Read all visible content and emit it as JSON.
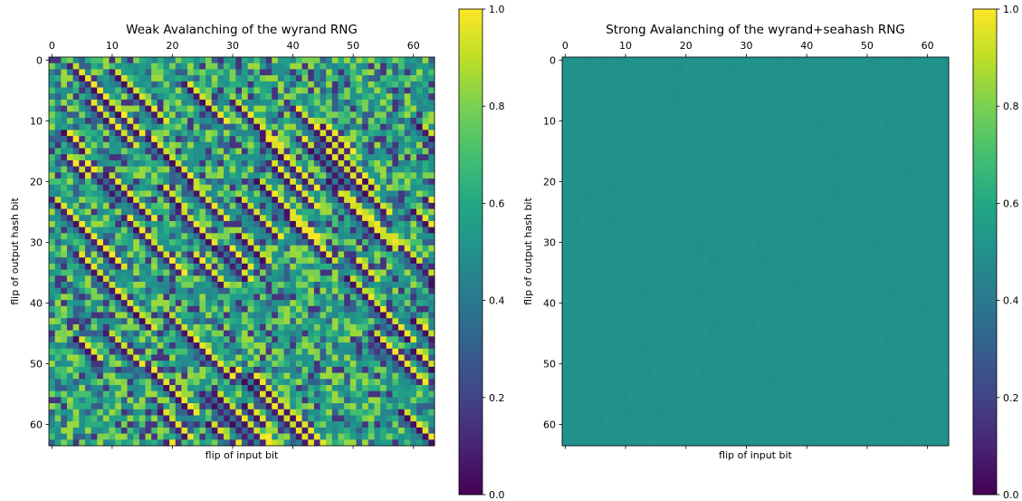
{
  "chart_data": [
    {
      "type": "heatmap",
      "title": "Weak Avalanching of the wyrand RNG",
      "xlabel": "flip of input bit",
      "ylabel": "flip of output hash bit",
      "xlim": [
        -0.5,
        63.5
      ],
      "ylim": [
        63.5,
        -0.5
      ],
      "x_ticks": [
        0,
        10,
        20,
        30,
        40,
        50,
        60
      ],
      "y_ticks": [
        0,
        10,
        20,
        30,
        40,
        50,
        60
      ],
      "grid": false,
      "colormap": "viridis",
      "colorbar": {
        "range": [
          0.0,
          1.0
        ],
        "ticks": [
          "0.0",
          "0.2",
          "0.4",
          "0.6",
          "0.8",
          "1.0"
        ]
      },
      "matrix_size": [
        64,
        64
      ],
      "pattern": "weak",
      "value_distribution": "values spread across 0.0–1.0 with diagonal bands of alternating near-0 and near-1 cells, roughly centred on 0.5"
    },
    {
      "type": "heatmap",
      "title": "Strong Avalanching of the wyrand+seahash RNG",
      "xlabel": "flip of input bit",
      "ylabel": "flip of output hash bit",
      "xlim": [
        -0.5,
        63.5
      ],
      "ylim": [
        63.5,
        -0.5
      ],
      "x_ticks": [
        0,
        10,
        20,
        30,
        40,
        50,
        60
      ],
      "y_ticks": [
        0,
        10,
        20,
        30,
        40,
        50,
        60
      ],
      "grid": false,
      "colormap": "viridis",
      "colorbar": {
        "range": [
          0.0,
          1.0
        ],
        "ticks": [
          "0.0",
          "0.2",
          "0.4",
          "0.6",
          "0.8",
          "1.0"
        ]
      },
      "matrix_size": [
        64,
        64
      ],
      "pattern": "uniform",
      "value_distribution": "all cells approximately 0.5"
    }
  ]
}
